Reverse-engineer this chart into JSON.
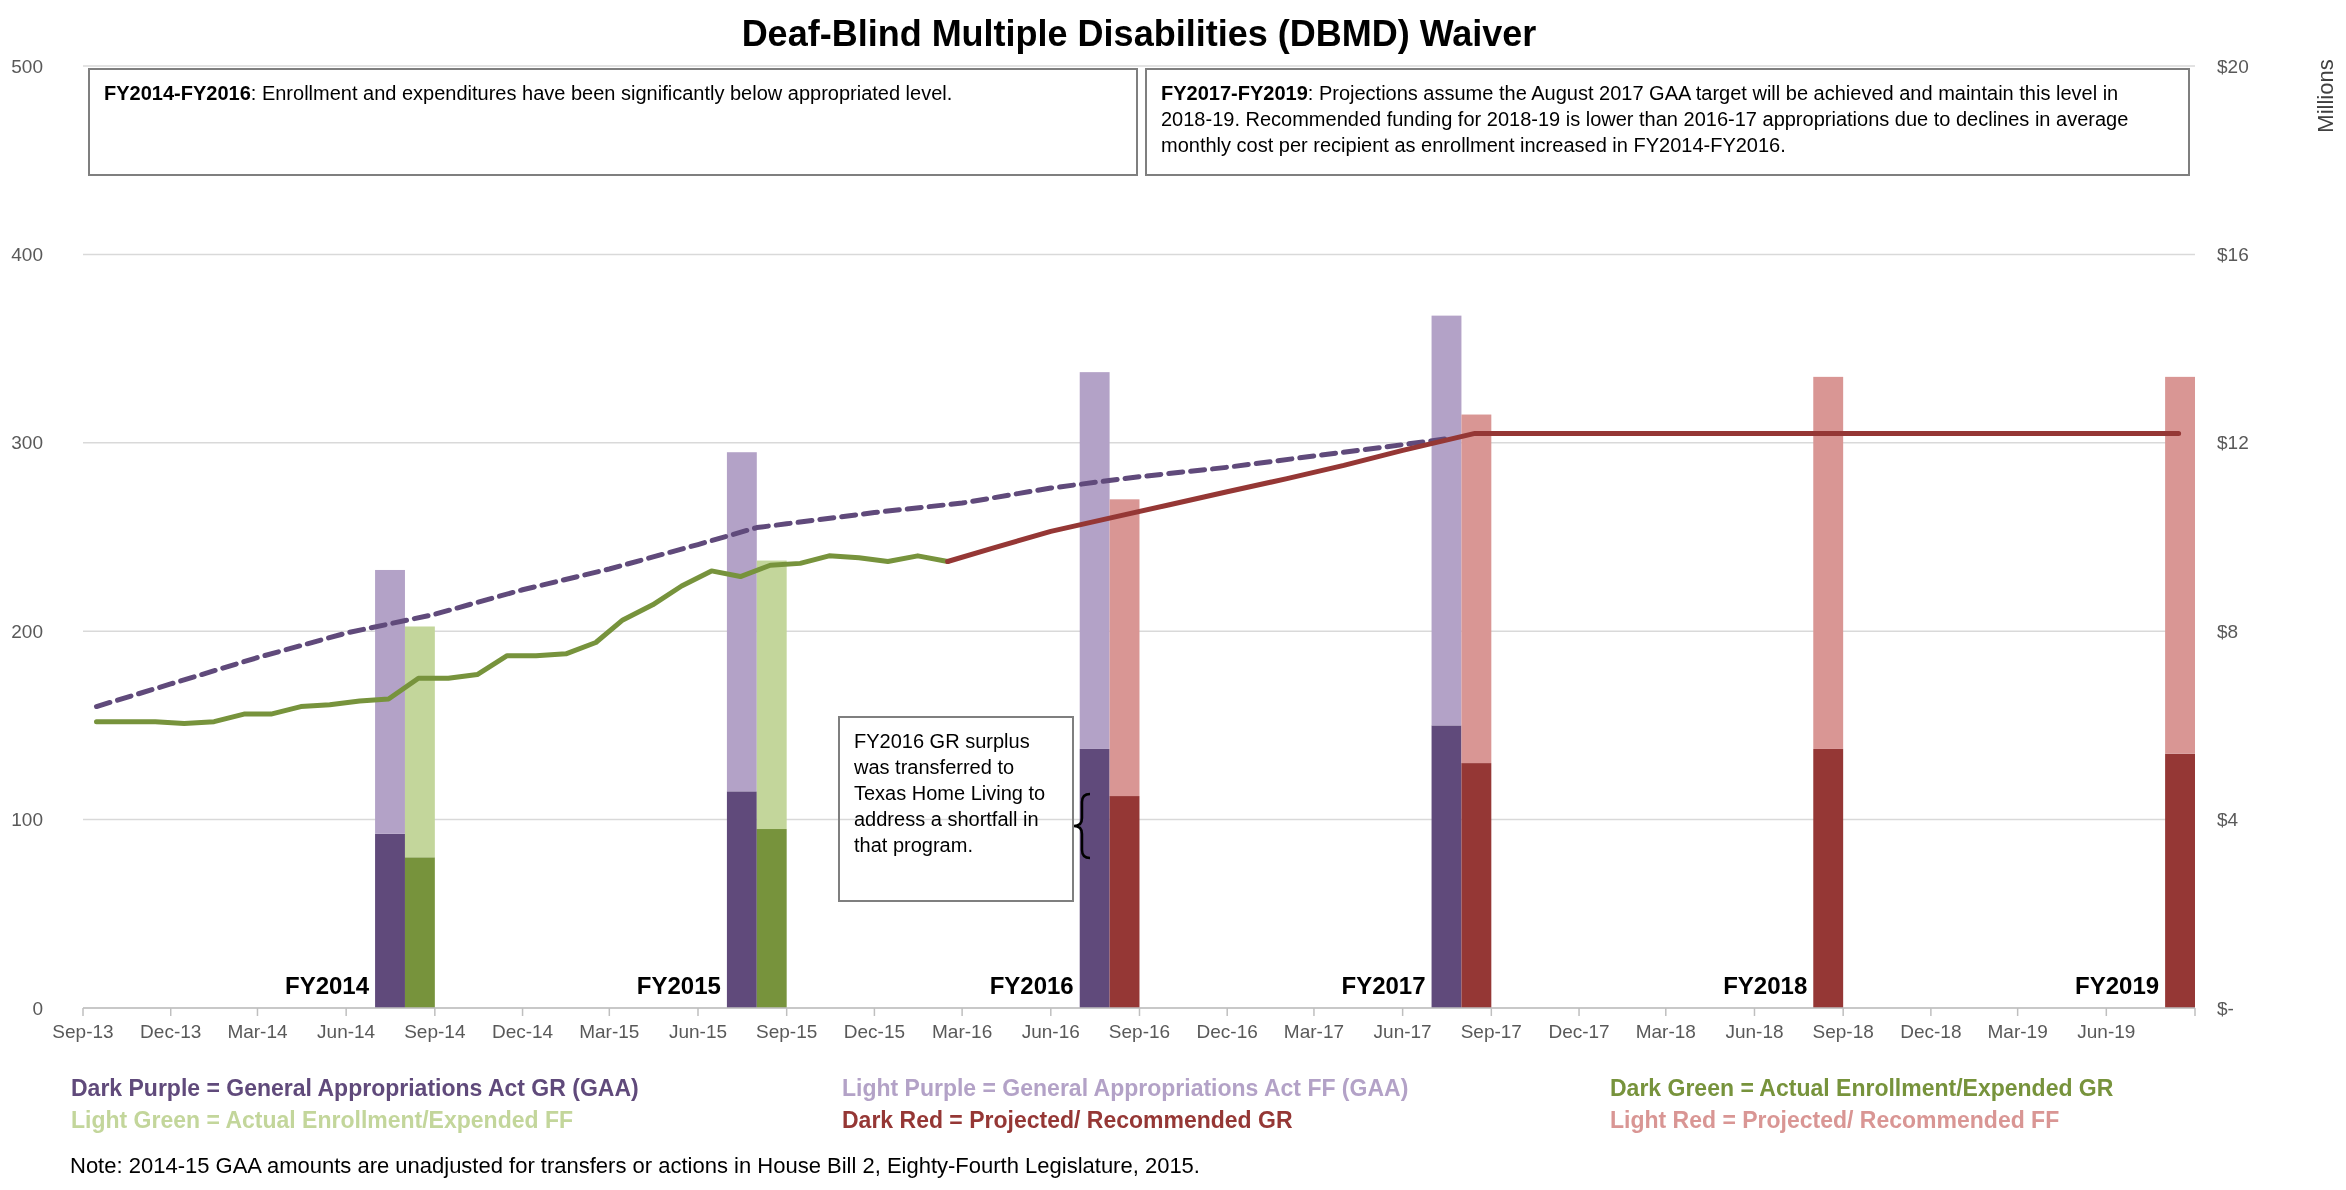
{
  "chart_data": {
    "title": "Deaf-Blind Multiple Disabilities (DBMD) Waiver",
    "y2label": "Millions",
    "type": "line",
    "stacked": true,
    "grid": "y",
    "legend": false,
    "xlim": [
      "2013-09",
      "2019-09"
    ],
    "x": [
      "2014-07-15",
      "2014-08-15",
      "2015-07-15",
      "2015-08-15",
      "2016-07-15",
      "2016-08-15",
      "2017-07-15",
      "2017-08-15",
      "2018-08-15",
      "2019-08-15"
    ],
    "xticks": [
      {
        "value": "2013-09",
        "label": "Sep-13"
      },
      {
        "value": "2013-12",
        "label": "Dec-13"
      },
      {
        "value": "2014-03",
        "label": "Mar-14"
      },
      {
        "value": "2014-06",
        "label": "Jun-14"
      },
      {
        "value": "2014-09",
        "label": "Sep-14"
      },
      {
        "value": "2014-12",
        "label": "Dec-14"
      },
      {
        "value": "2015-03",
        "label": "Mar-15"
      },
      {
        "value": "2015-06",
        "label": "Jun-15"
      },
      {
        "value": "2015-09",
        "label": "Sep-15"
      },
      {
        "value": "2015-12",
        "label": "Dec-15"
      },
      {
        "value": "2016-03",
        "label": "Mar-16"
      },
      {
        "value": "2016-06",
        "label": "Jun-16"
      },
      {
        "value": "2016-09",
        "label": "Sep-16"
      },
      {
        "value": "2016-12",
        "label": "Dec-16"
      },
      {
        "value": "2017-03",
        "label": "Mar-17"
      },
      {
        "value": "2017-06",
        "label": "Jun-17"
      },
      {
        "value": "2017-09",
        "label": "Sep-17"
      },
      {
        "value": "2017-12",
        "label": "Dec-17"
      },
      {
        "value": "2018-03",
        "label": "Mar-18"
      },
      {
        "value": "2018-06",
        "label": "Jun-18"
      },
      {
        "value": "2018-09",
        "label": "Sep-18"
      },
      {
        "value": "2018-12",
        "label": "Dec-18"
      },
      {
        "value": "2019-03",
        "label": "Mar-19"
      },
      {
        "value": "2019-06",
        "label": "Jun-19"
      }
    ],
    "ylim": [
      0,
      500
    ],
    "yticks": [
      0,
      100,
      200,
      300,
      400,
      500
    ],
    "y2lim": [
      0,
      20
    ],
    "y2ticks": [
      {
        "value": 0,
        "label": "$-"
      },
      {
        "value": 4,
        "label": "$4"
      },
      {
        "value": 8,
        "label": "$8"
      },
      {
        "value": 12,
        "label": "$12"
      },
      {
        "value": 16,
        "label": "$16"
      },
      {
        "value": 20,
        "label": "$20"
      }
    ],
    "series": [
      {
        "name": "Dark Purple = General Appropriations Act GR (GAA)",
        "type": "bar",
        "axis": "y2",
        "color": "#604a7b",
        "values": [
          3.7,
          null,
          4.6,
          null,
          5.5,
          null,
          6.0,
          null,
          null,
          null
        ]
      },
      {
        "name": "Light Purple = General Appropriations Act FF (GAA)",
        "type": "bar",
        "axis": "y2",
        "color": "#b3a2c7",
        "values": [
          5.6,
          null,
          7.2,
          null,
          8.0,
          null,
          8.7,
          null,
          null,
          null
        ]
      },
      {
        "name": "Dark Green = Actual Enrollment/Expended GR",
        "type": "bar",
        "axis": "y2",
        "color": "#77933c",
        "values": [
          null,
          3.2,
          null,
          3.8,
          null,
          null,
          null,
          null,
          null,
          null
        ]
      },
      {
        "name": "Light Green = Actual Enrollment/Expended FF",
        "type": "bar",
        "axis": "y2",
        "color": "#c3d69b",
        "values": [
          null,
          4.9,
          null,
          5.7,
          null,
          null,
          null,
          null,
          null,
          null
        ]
      },
      {
        "name": "Dark Red = Projected/ Recommended GR",
        "type": "bar",
        "axis": "y2",
        "color": "#953735",
        "values": [
          null,
          null,
          null,
          null,
          null,
          4.5,
          null,
          5.2,
          5.5,
          5.4
        ]
      },
      {
        "name": "Light Red = Projected/ Recommended FF",
        "type": "bar",
        "axis": "y2",
        "color": "#d99694",
        "values": [
          null,
          null,
          null,
          null,
          null,
          6.3,
          null,
          7.4,
          7.9,
          8.0
        ]
      },
      {
        "line_style": "dashed",
        "color": "#604a7b",
        "x": [
          "2013-09-15",
          "2013-12",
          "2014-03",
          "2014-06",
          "2014-09",
          "2014-12",
          "2015-03",
          "2015-06",
          "2015-08",
          "2015-09",
          "2015-12",
          "2016-03",
          "2016-06",
          "2016-09",
          "2016-12",
          "2017-03",
          "2017-06",
          "2017-07-15"
        ],
        "values": [
          160,
          172,
          186,
          199,
          209,
          222,
          233,
          246,
          255,
          257,
          263,
          268,
          276,
          282,
          287,
          293,
          299,
          302
        ]
      },
      {
        "type": "line",
        "line_style": "solid",
        "color": "#77933c",
        "x": [
          "2013-09-15",
          "2013-10-15",
          "2013-11-15",
          "2013-12-15",
          "2014-01-15",
          "2014-02-15",
          "2014-03-15",
          "2014-04-15",
          "2014-05-15",
          "2014-06-15",
          "2014-07-15",
          "2014-08-15",
          "2014-09-15",
          "2014-10-15",
          "2014-11-15",
          "2014-12-15",
          "2015-01-15",
          "2015-02-15",
          "2015-03-15",
          "2015-04-15",
          "2015-05-15",
          "2015-06-15",
          "2015-07-15",
          "2015-08-15",
          "2015-09-15",
          "2015-10-15",
          "2015-11-15",
          "2015-12-15",
          "2016-01-15",
          "2016-02-15"
        ],
        "values": [
          152,
          152,
          152,
          151,
          152,
          156,
          156,
          160,
          161,
          163,
          164,
          175,
          175,
          177,
          187,
          187,
          188,
          194,
          206,
          214,
          224,
          232,
          229,
          235,
          236,
          240,
          239,
          237,
          240,
          237
        ]
      },
      {
        "type": "line",
        "line_style": "solid",
        "color": "#953735",
        "x": [
          "2016-02-15",
          "2016-04",
          "2016-06",
          "2016-08",
          "2016-10",
          "2016-12",
          "2017-02",
          "2017-04",
          "2017-06",
          "2017-08-15",
          "2019-08-15"
        ],
        "values": [
          237,
          244,
          253,
          260,
          267,
          274,
          281,
          288,
          296,
          305,
          305
        ]
      }
    ],
    "annotations": [
      "FY2014-FY2016: Enrollment and expenditures have been significantly below appropriated level.",
      "FY2017-FY2019: Projections assume the August 2017 GAA target will be achieved and maintain this level in 2018-19. Recommended funding for 2018-19 is lower than 2016-17 appropriations due to declines in average monthly cost per recipient as enrollment increased in FY2014-FY2016.",
      "FY2016 GR surplus was transferred to Texas Home Living to address a shortfall in that program.",
      "Note: 2014-15 GAA amounts are unadjusted for transfers or actions in House Bill 2, Eighty-Fourth Legislature, 2015.",
      "FY2014",
      "FY2015",
      "FY2016",
      "FY2017",
      "FY2018",
      "FY2019"
    ]
  }
}
